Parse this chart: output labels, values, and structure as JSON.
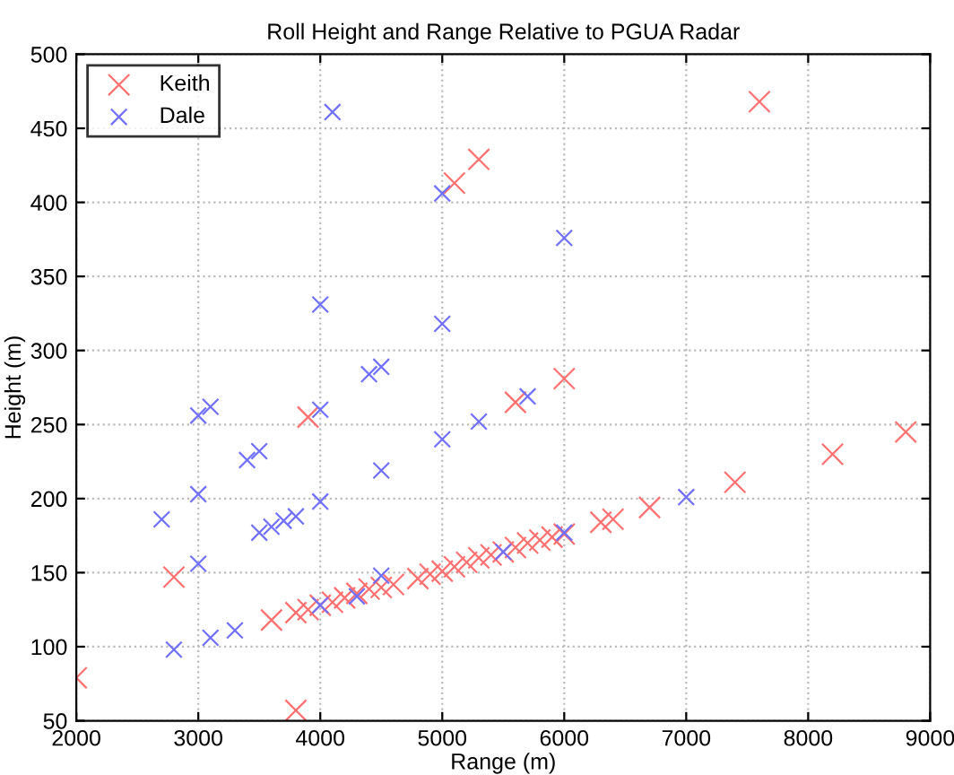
{
  "chart_data": {
    "type": "scatter",
    "title": "Roll Height and Range Relative to PGUA Radar",
    "xlabel": "Range (m)",
    "ylabel": "Height (m)",
    "xlim": [
      2000,
      9000
    ],
    "xticks": [
      2000,
      3000,
      4000,
      5000,
      6000,
      7000,
      8000,
      9000
    ],
    "ylim": [
      50,
      500
    ],
    "yticks": [
      50,
      100,
      150,
      200,
      250,
      300,
      350,
      400,
      450,
      500
    ],
    "grid": true,
    "legend": "top left",
    "marker": "cross",
    "series": [
      {
        "name": "Keith",
        "color": "#ff7070",
        "x": [
          2000,
          2800,
          3600,
          3800,
          3800,
          3900,
          3900,
          4000,
          4100,
          4200,
          4300,
          4400,
          4500,
          4600,
          4800,
          4900,
          5000,
          5100,
          5200,
          5300,
          5400,
          5500,
          5600,
          5700,
          5800,
          5900,
          6000,
          6300,
          6400,
          6700,
          7400,
          8200,
          8800,
          5600,
          6000,
          5100,
          5300,
          7600
        ],
        "values": [
          79,
          147,
          118,
          57,
          123,
          125,
          255,
          128,
          130,
          133,
          136,
          139,
          140,
          142,
          146,
          149,
          151,
          154,
          157,
          160,
          162,
          164,
          167,
          170,
          172,
          174,
          176,
          184,
          186,
          194,
          211,
          230,
          245,
          265,
          281,
          413,
          429,
          468
        ]
      },
      {
        "name": "Dale",
        "color": "#7070ff",
        "x": [
          2700,
          2800,
          3000,
          3000,
          3000,
          3100,
          3100,
          3300,
          3400,
          3500,
          3500,
          3600,
          3700,
          3800,
          4000,
          4000,
          4000,
          4000,
          4100,
          4300,
          4400,
          4500,
          4500,
          4500,
          5000,
          5000,
          5000,
          5300,
          5500,
          5700,
          6000,
          6000,
          7000
        ],
        "values": [
          186,
          98,
          156,
          203,
          256,
          262,
          106,
          111,
          226,
          232,
          177,
          181,
          185,
          188,
          198,
          260,
          128,
          331,
          461,
          134,
          284,
          289,
          219,
          148,
          240,
          318,
          406,
          252,
          164,
          269,
          177,
          376,
          201
        ]
      }
    ]
  }
}
